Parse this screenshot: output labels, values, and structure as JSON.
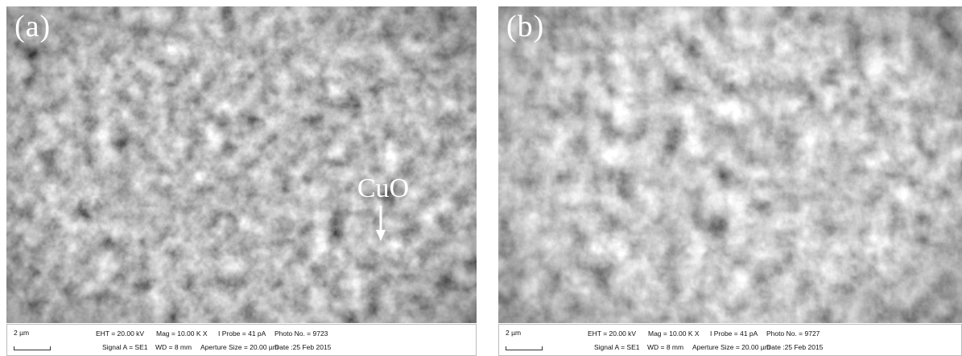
{
  "panels": [
    {
      "label": "(a)",
      "callout": "CuO",
      "scale_bar": "2 µm",
      "eht": "EHT = 20.00 kV",
      "mag": "Mag =  10.00 K X",
      "probe": "I Probe =    41 pA",
      "photo": "Photo No. = 9723",
      "signal": "Signal A = SE1",
      "wd": "WD =   8 mm",
      "aperture": "Aperture Size = 20.00 µm",
      "date": "Date :25 Feb 2015"
    },
    {
      "label": "(b)",
      "scale_bar": "2 µm",
      "eht": "EHT = 20.00 kV",
      "mag": "Mag =  10.00 K X",
      "probe": "I Probe =    41 pA",
      "photo": "Photo No. = 9727",
      "signal": "Signal A = SE1",
      "wd": "WD =   8 mm",
      "aperture": "Aperture Size = 20.00 µm",
      "date": "Date :25 Feb 2015"
    }
  ],
  "colors": {
    "label": "#ffffff",
    "image_base": "#3e3e3e",
    "databar_bg": "#ffffff"
  }
}
